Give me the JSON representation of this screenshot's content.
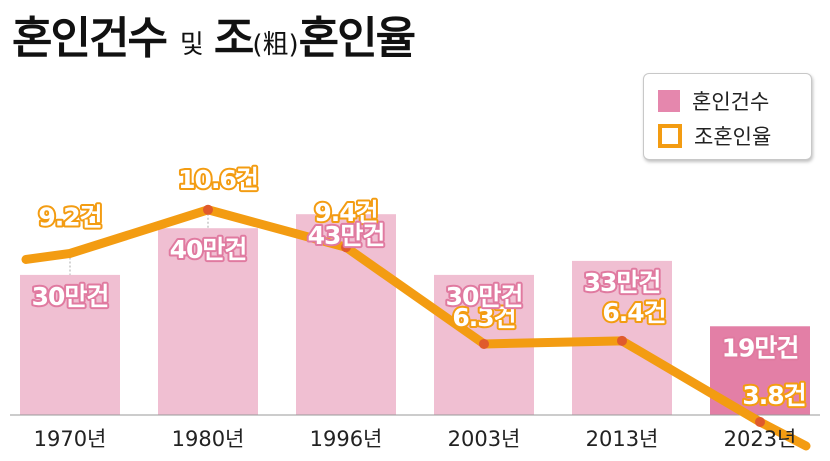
{
  "title": {
    "main1": "혼인건수",
    "connector": "및",
    "main2a": "조",
    "paren": "(粗)",
    "main2b": "혼인율"
  },
  "legend": {
    "bar_label": "혼인건수",
    "line_label": "조혼인율"
  },
  "colors": {
    "bar": "#f0bfd2",
    "bar_highlight": "#e37fa6",
    "line": "#f39c12",
    "bar_label": "#ffffff",
    "bar_label_stroke": "#e07aa0",
    "line_label": "#ffffff",
    "line_label_stroke": "#f39c12"
  },
  "chart_data": {
    "type": "bar+line",
    "categories": [
      "1970년",
      "1980년",
      "1996년",
      "2003년",
      "2013년",
      "2023년"
    ],
    "series": [
      {
        "name": "혼인건수",
        "type": "bar",
        "values": [
          30,
          40,
          43,
          30,
          33,
          19
        ],
        "labels": [
          "30만건",
          "40만건",
          "43만건",
          "30만건",
          "33만건",
          "19만건"
        ]
      },
      {
        "name": "조혼인율",
        "type": "line",
        "values": [
          9.2,
          10.6,
          9.4,
          6.3,
          6.4,
          3.8
        ],
        "labels": [
          "9.2건",
          "10.6건",
          "9.4건",
          "6.3건",
          "6.4건",
          "3.8건"
        ]
      }
    ],
    "legend_position": "top-right",
    "grid": false
  }
}
